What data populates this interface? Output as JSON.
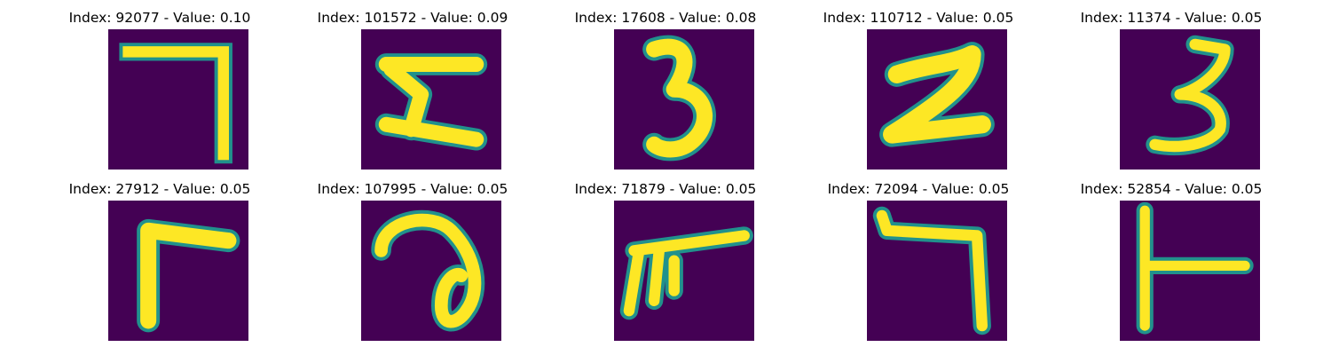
{
  "colormap": {
    "background": "#440154",
    "edge_dark": "#21918c",
    "edge_light": "#5ec962",
    "foreground": "#fde725"
  },
  "figure": {
    "panels": [
      {
        "title": "Index: 92077 - Value: 0.10",
        "glyph": "digit-7-shape"
      },
      {
        "title": "Index: 101572 - Value: 0.09",
        "glyph": "digit-5-like-shape"
      },
      {
        "title": "Index: 17608 - Value: 0.08",
        "glyph": "digit-3-shape"
      },
      {
        "title": "Index: 110712 - Value: 0.05",
        "glyph": "digit-2-shape"
      },
      {
        "title": "Index: 11374 - Value: 0.05",
        "glyph": "digit-3-shape"
      },
      {
        "title": "Index: 27912 - Value: 0.05",
        "glyph": "corner-shape"
      },
      {
        "title": "Index: 107995 - Value: 0.05",
        "glyph": "loop-shape"
      },
      {
        "title": "Index: 71879 - Value: 0.05",
        "glyph": "comb-shape"
      },
      {
        "title": "Index: 72094 - Value: 0.05",
        "glyph": "digit-7-shape"
      },
      {
        "title": "Index: 52854 - Value: 0.05",
        "glyph": "t-shape"
      }
    ]
  }
}
